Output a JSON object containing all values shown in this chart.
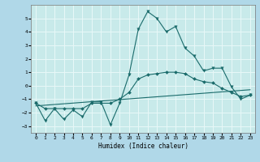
{
  "xlabel": "Humidex (Indice chaleur)",
  "background_color": "#b0d8e8",
  "plot_bg_color": "#c8eaea",
  "grid_color": "#e8f8f8",
  "line_color": "#1a6b6b",
  "xlim": [
    -0.5,
    23.5
  ],
  "ylim": [
    -3.5,
    6.0
  ],
  "xticks": [
    0,
    1,
    2,
    3,
    4,
    5,
    6,
    7,
    8,
    9,
    10,
    11,
    12,
    13,
    14,
    15,
    16,
    17,
    18,
    19,
    20,
    21,
    22,
    23
  ],
  "yticks": [
    -3,
    -2,
    -1,
    0,
    1,
    2,
    3,
    4,
    5
  ],
  "line1_x": [
    0,
    1,
    2,
    3,
    4,
    5,
    6,
    7,
    8,
    9,
    10,
    11,
    12,
    13,
    14,
    15,
    16,
    17,
    18,
    19,
    20,
    21,
    22,
    23
  ],
  "line1_y": [
    -1.3,
    -2.6,
    -1.7,
    -2.5,
    -1.8,
    -2.3,
    -1.2,
    -1.2,
    -2.9,
    -1.3,
    0.8,
    4.2,
    5.5,
    5.0,
    4.0,
    4.4,
    2.8,
    2.2,
    1.1,
    1.3,
    1.3,
    -0.1,
    -1.0,
    -0.7
  ],
  "line2_x": [
    0,
    1,
    2,
    3,
    4,
    5,
    6,
    7,
    8,
    9,
    10,
    11,
    12,
    13,
    14,
    15,
    16,
    17,
    18,
    19,
    20,
    21,
    22,
    23
  ],
  "line2_y": [
    -1.3,
    -1.7,
    -1.7,
    -1.7,
    -1.7,
    -1.7,
    -1.3,
    -1.3,
    -1.3,
    -1.0,
    -0.5,
    0.5,
    0.8,
    0.9,
    1.0,
    1.0,
    0.9,
    0.5,
    0.3,
    0.2,
    -0.2,
    -0.5,
    -0.8,
    -0.7
  ],
  "line3_x": [
    0,
    23
  ],
  "line3_y": [
    -1.5,
    -0.3
  ]
}
